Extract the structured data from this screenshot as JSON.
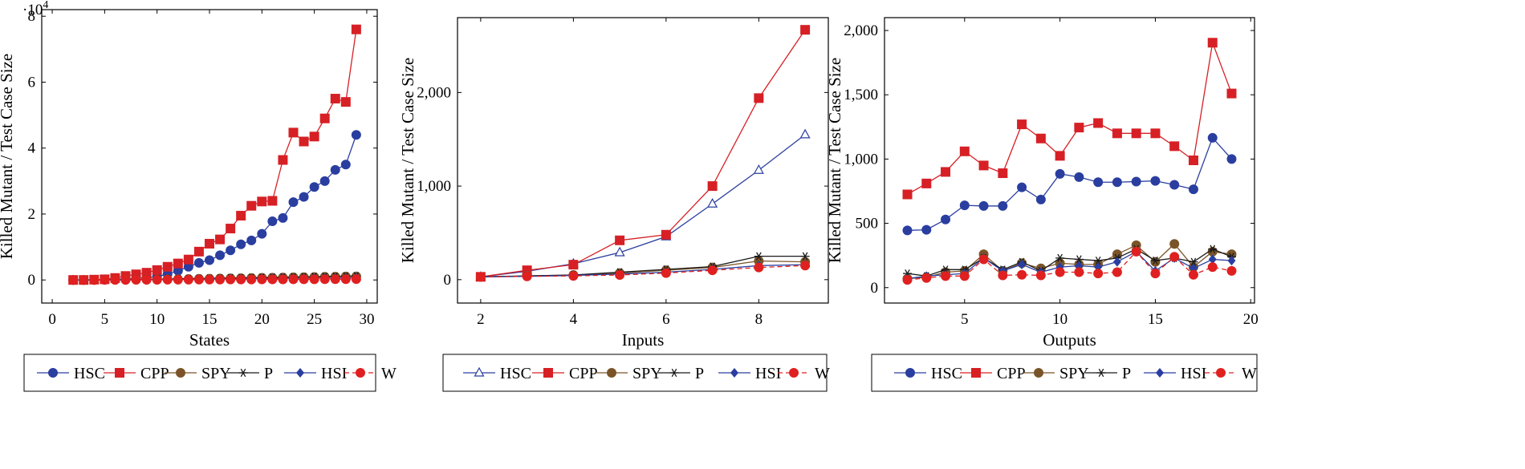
{
  "colors": {
    "HSC": "#2a3ea0",
    "CPP": "#d62025",
    "SPY": "#7a5428",
    "P": "#1a1a1a",
    "HSI": "#2a3ea0",
    "W": "#e02020"
  },
  "chart_data": [
    {
      "type": "line",
      "xlabel": "States",
      "ylabel": "Killed Mutant / Test Case Size",
      "xlim": [
        -1,
        31
      ],
      "ylim": [
        -7000,
        82000
      ],
      "xticks": [
        0,
        5,
        10,
        15,
        20,
        25,
        30
      ],
      "yticks": [
        0,
        20000,
        40000,
        60000,
        80000
      ],
      "ytick_labels": [
        "0",
        "2",
        "4",
        "6",
        "8"
      ],
      "y_exponent": "·10",
      "y_exponent_power": "4",
      "legend": [
        "HSC",
        "CPP",
        "SPY",
        "P",
        "HSI",
        "W"
      ],
      "legend_position": "bottom",
      "series": [
        {
          "name": "HSC",
          "marker": "circle",
          "dash": false,
          "x": [
            2,
            3,
            4,
            5,
            6,
            7,
            8,
            9,
            10,
            11,
            12,
            13,
            14,
            15,
            16,
            17,
            18,
            19,
            20,
            21,
            22,
            23,
            24,
            25,
            26,
            27,
            28,
            29
          ],
          "values": [
            0,
            0,
            50,
            100,
            200,
            300,
            500,
            700,
            1000,
            1800,
            2800,
            4000,
            5200,
            6000,
            7500,
            9000,
            10800,
            12000,
            14000,
            17800,
            18800,
            23600,
            25200,
            28200,
            30000,
            33400,
            35000,
            44000
          ]
        },
        {
          "name": "CPP",
          "marker": "square",
          "dash": false,
          "x": [
            2,
            3,
            4,
            5,
            6,
            7,
            8,
            9,
            10,
            11,
            12,
            13,
            14,
            15,
            16,
            17,
            18,
            19,
            20,
            21,
            22,
            23,
            24,
            25,
            26,
            27,
            28,
            29
          ],
          "values": [
            0,
            0,
            100,
            200,
            600,
            1200,
            1700,
            2200,
            3000,
            4000,
            5000,
            6200,
            8600,
            11000,
            12300,
            15600,
            19500,
            22500,
            23800,
            24000,
            36400,
            44700,
            42000,
            43500,
            49000,
            55000,
            54000,
            76000
          ]
        },
        {
          "name": "SPY",
          "marker": "circle",
          "dash": false,
          "x": [
            2,
            3,
            4,
            5,
            6,
            7,
            8,
            9,
            10,
            11,
            12,
            13,
            14,
            15,
            16,
            17,
            18,
            19,
            20,
            21,
            22,
            23,
            24,
            25,
            26,
            27,
            28,
            29
          ],
          "values": [
            0,
            0,
            0,
            50,
            50,
            50,
            100,
            100,
            150,
            200,
            250,
            300,
            350,
            400,
            450,
            500,
            550,
            600,
            650,
            700,
            750,
            800,
            850,
            900,
            950,
            1000,
            1050,
            1100
          ]
        },
        {
          "name": "P",
          "marker": "star",
          "dash": false,
          "x": [
            2,
            3,
            4,
            5,
            6,
            7,
            8,
            9,
            10,
            11,
            12,
            13,
            14,
            15,
            16,
            17,
            18,
            19,
            20,
            21,
            22,
            23,
            24,
            25,
            26,
            27,
            28,
            29
          ],
          "values": [
            0,
            0,
            0,
            50,
            50,
            100,
            150,
            200,
            250,
            300,
            350,
            400,
            450,
            500,
            550,
            600,
            650,
            700,
            750,
            800,
            850,
            900,
            950,
            1000,
            1050,
            1100,
            1150,
            1200
          ]
        },
        {
          "name": "HSI",
          "marker": "diamond",
          "dash": false,
          "x": [
            2,
            3,
            4,
            5,
            6,
            7,
            8,
            9,
            10,
            11,
            12,
            13,
            14,
            15,
            16,
            17,
            18,
            19,
            20,
            21,
            22,
            23,
            24,
            25,
            26,
            27,
            28,
            29
          ],
          "values": [
            0,
            0,
            0,
            20,
            20,
            40,
            60,
            80,
            100,
            120,
            150,
            180,
            200,
            230,
            260,
            290,
            320,
            350,
            380,
            410,
            440,
            470,
            500,
            530,
            560,
            590,
            620,
            650
          ]
        },
        {
          "name": "W",
          "marker": "circle",
          "dash": true,
          "x": [
            2,
            3,
            4,
            5,
            6,
            7,
            8,
            9,
            10,
            11,
            12,
            13,
            14,
            15,
            16,
            17,
            18,
            19,
            20,
            21,
            22,
            23,
            24,
            25,
            26,
            27,
            28,
            29
          ],
          "values": [
            0,
            0,
            0,
            20,
            20,
            30,
            40,
            50,
            60,
            70,
            80,
            90,
            100,
            110,
            120,
            130,
            140,
            150,
            160,
            170,
            180,
            190,
            200,
            210,
            220,
            230,
            240,
            250
          ]
        }
      ]
    },
    {
      "type": "line",
      "xlabel": "Inputs",
      "ylabel": "Killed Mutant / Test Case Size",
      "xlim": [
        1.5,
        9.5
      ],
      "ylim": [
        -250,
        2800
      ],
      "xticks": [
        2,
        4,
        6,
        8
      ],
      "yticks": [
        0,
        1000,
        2000
      ],
      "ytick_labels": [
        "0",
        "1,000",
        "2,000"
      ],
      "legend": [
        "HSC",
        "CPP",
        "SPY",
        "P",
        "HSI",
        "W"
      ],
      "legend_position": "bottom",
      "series": [
        {
          "name": "HSC",
          "marker": "triangle",
          "dash": false,
          "x": [
            2,
            3,
            4,
            5,
            6,
            7,
            8,
            9
          ],
          "values": [
            30,
            90,
            170,
            290,
            460,
            810,
            1170,
            1550
          ]
        },
        {
          "name": "CPP",
          "marker": "square",
          "dash": false,
          "x": [
            2,
            3,
            4,
            5,
            6,
            7,
            8,
            9
          ],
          "values": [
            30,
            100,
            160,
            420,
            480,
            1000,
            1940,
            2670
          ]
        },
        {
          "name": "SPY",
          "marker": "circle",
          "dash": false,
          "x": [
            2,
            3,
            4,
            5,
            6,
            7,
            8,
            9
          ],
          "values": [
            30,
            40,
            50,
            70,
            100,
            130,
            200,
            190
          ]
        },
        {
          "name": "P",
          "marker": "star",
          "dash": false,
          "x": [
            2,
            3,
            4,
            5,
            6,
            7,
            8,
            9
          ],
          "values": [
            30,
            40,
            50,
            80,
            110,
            140,
            250,
            250
          ]
        },
        {
          "name": "HSI",
          "marker": "diamond",
          "dash": false,
          "x": [
            2,
            3,
            4,
            5,
            6,
            7,
            8,
            9
          ],
          "values": [
            30,
            35,
            45,
            60,
            80,
            110,
            150,
            160
          ]
        },
        {
          "name": "W",
          "marker": "circle",
          "dash": true,
          "x": [
            2,
            3,
            4,
            5,
            6,
            7,
            8,
            9
          ],
          "values": [
            30,
            35,
            40,
            50,
            70,
            100,
            130,
            150
          ]
        }
      ]
    },
    {
      "type": "line",
      "xlabel": "Outputs",
      "ylabel": "Killed Mutant / Test Case Size",
      "xlim": [
        0.8,
        20.2
      ],
      "ylim": [
        -120,
        2100
      ],
      "xticks": [
        5,
        10,
        15,
        20
      ],
      "yticks": [
        0,
        500,
        1000,
        1500,
        2000
      ],
      "ytick_labels": [
        "0",
        "500",
        "1,000",
        "1,500",
        "2,000"
      ],
      "legend": [
        "HSC",
        "CPP",
        "SPY",
        "P",
        "HSI",
        "W"
      ],
      "legend_position": "bottom",
      "series": [
        {
          "name": "HSC",
          "marker": "circle",
          "dash": false,
          "x": [
            2,
            3,
            4,
            5,
            6,
            7,
            8,
            9,
            10,
            11,
            12,
            13,
            14,
            15,
            16,
            17,
            18,
            19
          ],
          "values": [
            445,
            450,
            530,
            640,
            635,
            635,
            780,
            685,
            885,
            860,
            820,
            820,
            825,
            830,
            800,
            765,
            1165,
            1000
          ]
        },
        {
          "name": "CPP",
          "marker": "square",
          "dash": false,
          "x": [
            2,
            3,
            4,
            5,
            6,
            7,
            8,
            9,
            10,
            11,
            12,
            13,
            14,
            15,
            16,
            17,
            18,
            19
          ],
          "values": [
            725,
            810,
            900,
            1060,
            950,
            890,
            1270,
            1160,
            1025,
            1245,
            1280,
            1200,
            1200,
            1200,
            1100,
            990,
            1905,
            1510
          ]
        },
        {
          "name": "SPY",
          "marker": "circle",
          "dash": false,
          "x": [
            2,
            3,
            4,
            5,
            6,
            7,
            8,
            9,
            10,
            11,
            12,
            13,
            14,
            15,
            16,
            17,
            18,
            19
          ],
          "values": [
            70,
            80,
            120,
            130,
            260,
            130,
            190,
            150,
            190,
            180,
            180,
            260,
            330,
            200,
            340,
            160,
            280,
            260
          ]
        },
        {
          "name": "P",
          "marker": "star",
          "dash": false,
          "x": [
            2,
            3,
            4,
            5,
            6,
            7,
            8,
            9,
            10,
            11,
            12,
            13,
            14,
            15,
            16,
            17,
            18,
            19
          ],
          "values": [
            110,
            90,
            140,
            140,
            230,
            140,
            200,
            130,
            230,
            220,
            210,
            230,
            300,
            210,
            230,
            200,
            300,
            240
          ]
        },
        {
          "name": "HSI",
          "marker": "diamond",
          "dash": false,
          "x": [
            2,
            3,
            4,
            5,
            6,
            7,
            8,
            9,
            10,
            11,
            12,
            13,
            14,
            15,
            16,
            17,
            18,
            19
          ],
          "values": [
            70,
            90,
            100,
            110,
            230,
            130,
            180,
            120,
            160,
            170,
            160,
            200,
            280,
            130,
            230,
            150,
            220,
            210
          ]
        },
        {
          "name": "W",
          "marker": "circle",
          "dash": true,
          "x": [
            2,
            3,
            4,
            5,
            6,
            7,
            8,
            9,
            10,
            11,
            12,
            13,
            14,
            15,
            16,
            17,
            18,
            19
          ],
          "values": [
            60,
            75,
            90,
            90,
            220,
            95,
            100,
            95,
            120,
            120,
            110,
            120,
            280,
            110,
            240,
            100,
            160,
            130
          ]
        }
      ]
    }
  ]
}
